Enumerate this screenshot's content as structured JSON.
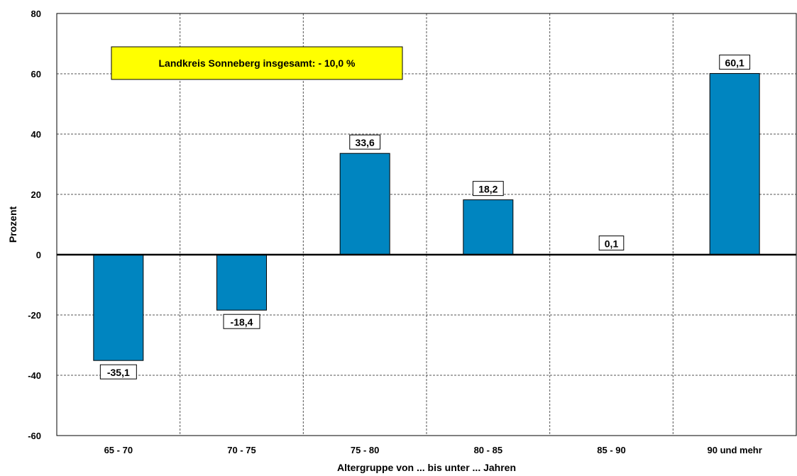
{
  "chart_data": {
    "type": "bar",
    "categories": [
      "65 - 70",
      "70 - 75",
      "75 - 80",
      "80 - 85",
      "85 - 90",
      "90 und mehr"
    ],
    "values": [
      -35.1,
      -18.4,
      33.6,
      18.2,
      0.1,
      60.1
    ],
    "data_labels": [
      "-35,1",
      "-18,4",
      "33,6",
      "18,2",
      "0,1",
      "60,1"
    ],
    "xlabel": "Altergruppe von ... bis unter ... Jahren",
    "ylabel": "Prozent",
    "ylim": [
      -60,
      80
    ],
    "yticks": [
      80,
      60,
      40,
      20,
      0,
      -20,
      -40,
      -60
    ],
    "grid": true,
    "annotation": "Landkreis Sonneberg insgesamt:  - 10,0 %",
    "colors": {
      "bar": "#0085C0",
      "annotation_fill": "#FFFF00"
    }
  }
}
